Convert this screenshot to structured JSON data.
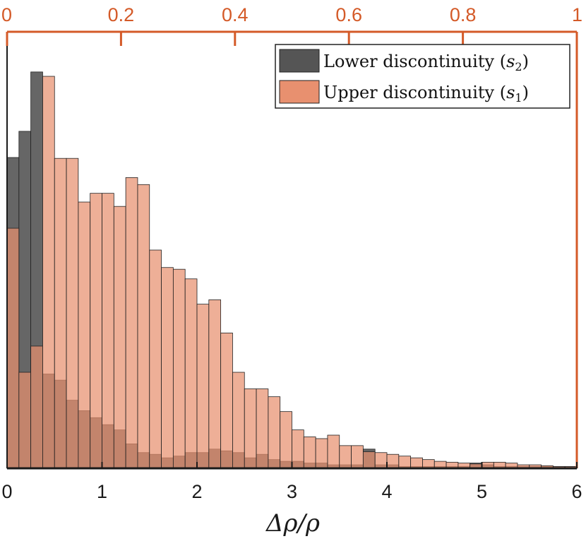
{
  "chart_data": {
    "type": "bar",
    "title": "",
    "xlabel": "Δρ/ρ",
    "ylabel": "",
    "xlim": [
      0,
      6
    ],
    "ylim": [
      0,
      0.5
    ],
    "bin_width": 0.125,
    "x_ticks": [
      "0",
      "1",
      "2",
      "3",
      "4",
      "5",
      "6"
    ],
    "top_axis": {
      "ticks": [
        "0",
        "0.2",
        "0.4",
        "0.6",
        "0.8",
        "1"
      ],
      "range": [
        0,
        1
      ]
    },
    "colors": {
      "lower": "#555555",
      "upper": "#e8906f",
      "axis_top": "#d45a28",
      "axis": "#1a1a1a"
    },
    "legend_position": "top-right",
    "series": [
      {
        "name": "Lower discontinuity (s₂)",
        "legend_label": "Lower discontinuity",
        "legend_var": "s",
        "legend_sub": "2",
        "values": [
          0.356,
          0.386,
          0.454,
          0.108,
          0.101,
          0.078,
          0.066,
          0.058,
          0.05,
          0.044,
          0.028,
          0.018,
          0.016,
          0.012,
          0.014,
          0.018,
          0.018,
          0.022,
          0.02,
          0.018,
          0.012,
          0.016,
          0.01,
          0.008,
          0.008,
          0.006,
          0.006,
          0.004,
          0.004,
          0.004,
          0.022,
          0.004,
          0.004,
          0.002,
          0.002,
          0.002,
          0.002,
          0.002,
          0.002,
          0.006,
          0.004,
          0.002,
          0.002,
          0.002,
          0.002,
          0.002,
          0.002,
          0.002
        ]
      },
      {
        "name": "Upper discontinuity (s₁)",
        "legend_label": "Upper discontinuity",
        "legend_var": "s",
        "legend_sub": "1",
        "values": [
          0.275,
          0.11,
          0.14,
          0.449,
          0.355,
          0.355,
          0.305,
          0.315,
          0.315,
          0.3,
          0.333,
          0.325,
          0.25,
          0.23,
          0.228,
          0.217,
          0.188,
          0.193,
          0.155,
          0.11,
          0.091,
          0.091,
          0.082,
          0.065,
          0.044,
          0.036,
          0.034,
          0.038,
          0.026,
          0.026,
          0.019,
          0.018,
          0.016,
          0.014,
          0.012,
          0.01,
          0.008,
          0.007,
          0.006,
          0.005,
          0.007,
          0.007,
          0.006,
          0.004,
          0.004,
          0.003,
          0.002,
          0.002
        ]
      }
    ]
  }
}
